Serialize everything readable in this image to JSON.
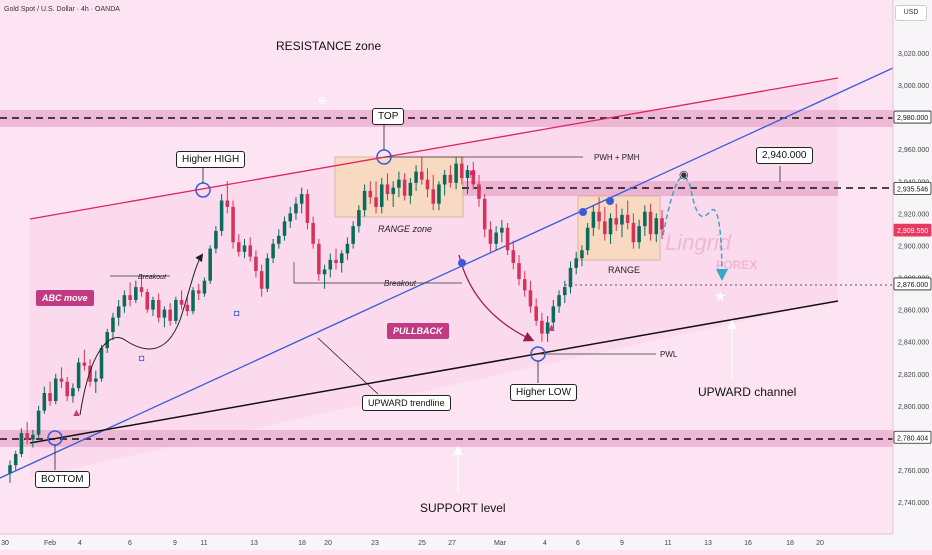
{
  "header": {
    "symbol_title": "Gold Spot / U.S. Dollar · 4h · OANDA",
    "currency_button": "USD"
  },
  "colors": {
    "up": "#0a6b5b",
    "down": "#d7325c",
    "blue": "#3a5bd9",
    "pink": "#c23b82",
    "resistance": "#e0245e"
  },
  "chart_data": {
    "type": "candlestick",
    "symbol": "Gold Spot / U.S. Dollar",
    "timeframe": "4h",
    "source": "OANDA",
    "ylim": [
      2730,
      3035
    ],
    "y_ticks": [
      "3,020.000",
      "3,000.000",
      "2,980.000",
      "2,960.000",
      "2,940.000",
      "2,920.000",
      "2,900.000",
      "2,880.000",
      "2,860.000",
      "2,840.000",
      "2,820.000",
      "2,800.000",
      "2,780.000",
      "2,760.000",
      "2,740.000"
    ],
    "y_tick_values": [
      3020,
      3000,
      2980,
      2960,
      2940,
      2920,
      2900,
      2880,
      2860,
      2840,
      2820,
      2800,
      2780,
      2760,
      2740
    ],
    "x_ticks": [
      "30",
      "Feb",
      "4",
      "6",
      "9",
      "11",
      "13",
      "18",
      "20",
      "23",
      "25",
      "27",
      "Mar",
      "4",
      "6",
      "9",
      "11",
      "13",
      "16",
      "18",
      "20"
    ],
    "price_markers": [
      {
        "label": "2,980.000",
        "value": 2980,
        "style": "white"
      },
      {
        "label": "2,935.546",
        "value": 2935.546,
        "style": "white"
      },
      {
        "label": "2,909.550",
        "value": 2909.55,
        "style": "red"
      },
      {
        "label": "2,876.000",
        "value": 2876,
        "style": "white"
      },
      {
        "label": "2,780.404",
        "value": 2780.404,
        "style": "white"
      }
    ],
    "candles_ohlc": [
      [
        2758,
        2766,
        2752,
        2763
      ],
      [
        2763,
        2772,
        2760,
        2770
      ],
      [
        2770,
        2786,
        2768,
        2783
      ],
      [
        2783,
        2790,
        2776,
        2779
      ],
      [
        2779,
        2785,
        2774,
        2782
      ],
      [
        2782,
        2800,
        2780,
        2797
      ],
      [
        2797,
        2812,
        2795,
        2808
      ],
      [
        2808,
        2815,
        2800,
        2803
      ],
      [
        2803,
        2820,
        2801,
        2817
      ],
      [
        2817,
        2824,
        2811,
        2815
      ],
      [
        2815,
        2818,
        2803,
        2806
      ],
      [
        2806,
        2814,
        2802,
        2811
      ],
      [
        2811,
        2830,
        2809,
        2827
      ],
      [
        2827,
        2835,
        2822,
        2825
      ],
      [
        2825,
        2829,
        2812,
        2815
      ],
      [
        2815,
        2822,
        2808,
        2817
      ],
      [
        2817,
        2838,
        2815,
        2836
      ],
      [
        2836,
        2848,
        2833,
        2846
      ],
      [
        2846,
        2858,
        2841,
        2855
      ],
      [
        2855,
        2866,
        2850,
        2862
      ],
      [
        2862,
        2872,
        2858,
        2869
      ],
      [
        2869,
        2877,
        2862,
        2866
      ],
      [
        2866,
        2878,
        2864,
        2874
      ],
      [
        2874,
        2882,
        2868,
        2871
      ],
      [
        2871,
        2873,
        2858,
        2860
      ],
      [
        2860,
        2868,
        2856,
        2866
      ],
      [
        2866,
        2870,
        2852,
        2855
      ],
      [
        2855,
        2862,
        2849,
        2860
      ],
      [
        2860,
        2864,
        2850,
        2853
      ],
      [
        2853,
        2868,
        2851,
        2866
      ],
      [
        2866,
        2872,
        2860,
        2863
      ],
      [
        2863,
        2868,
        2856,
        2859
      ],
      [
        2859,
        2874,
        2857,
        2872
      ],
      [
        2872,
        2876,
        2866,
        2870
      ],
      [
        2870,
        2880,
        2868,
        2878
      ],
      [
        2878,
        2900,
        2876,
        2898
      ],
      [
        2898,
        2912,
        2895,
        2909
      ],
      [
        2909,
        2932,
        2906,
        2928
      ],
      [
        2928,
        2940,
        2920,
        2924
      ],
      [
        2924,
        2928,
        2898,
        2902
      ],
      [
        2902,
        2907,
        2893,
        2896
      ],
      [
        2896,
        2904,
        2892,
        2900
      ],
      [
        2900,
        2905,
        2890,
        2893
      ],
      [
        2893,
        2897,
        2880,
        2884
      ],
      [
        2884,
        2888,
        2868,
        2873
      ],
      [
        2873,
        2895,
        2871,
        2892
      ],
      [
        2892,
        2904,
        2889,
        2901
      ],
      [
        2901,
        2910,
        2898,
        2906
      ],
      [
        2906,
        2918,
        2903,
        2915
      ],
      [
        2915,
        2924,
        2911,
        2920
      ],
      [
        2920,
        2930,
        2916,
        2926
      ],
      [
        2926,
        2936,
        2920,
        2932
      ],
      [
        2932,
        2935,
        2910,
        2914
      ],
      [
        2914,
        2918,
        2898,
        2901
      ],
      [
        2901,
        2904,
        2878,
        2882
      ],
      [
        2882,
        2888,
        2873,
        2885
      ],
      [
        2885,
        2895,
        2880,
        2891
      ],
      [
        2891,
        2898,
        2885,
        2889
      ],
      [
        2889,
        2897,
        2883,
        2895
      ],
      [
        2895,
        2905,
        2891,
        2901
      ],
      [
        2901,
        2915,
        2898,
        2912
      ],
      [
        2912,
        2925,
        2908,
        2922
      ],
      [
        2922,
        2938,
        2918,
        2934
      ],
      [
        2934,
        2940,
        2926,
        2930
      ],
      [
        2930,
        2940,
        2920,
        2924
      ],
      [
        2924,
        2942,
        2920,
        2938
      ],
      [
        2938,
        2945,
        2928,
        2932
      ],
      [
        2932,
        2940,
        2924,
        2936
      ],
      [
        2936,
        2946,
        2930,
        2941
      ],
      [
        2941,
        2945,
        2928,
        2931
      ],
      [
        2931,
        2942,
        2926,
        2939
      ],
      [
        2939,
        2950,
        2934,
        2946
      ],
      [
        2946,
        2955,
        2938,
        2941
      ],
      [
        2941,
        2948,
        2930,
        2935
      ],
      [
        2935,
        2944,
        2922,
        2926
      ],
      [
        2926,
        2940,
        2922,
        2938
      ],
      [
        2938,
        2947,
        2931,
        2944
      ],
      [
        2944,
        2950,
        2936,
        2939
      ],
      [
        2939,
        2955,
        2935,
        2951
      ],
      [
        2951,
        2955,
        2938,
        2942
      ],
      [
        2942,
        2950,
        2932,
        2947
      ],
      [
        2947,
        2952,
        2935,
        2938
      ],
      [
        2938,
        2944,
        2924,
        2929
      ],
      [
        2929,
        2932,
        2905,
        2910
      ],
      [
        2910,
        2915,
        2896,
        2901
      ],
      [
        2901,
        2912,
        2897,
        2908
      ],
      [
        2908,
        2916,
        2902,
        2911
      ],
      [
        2911,
        2914,
        2894,
        2897
      ],
      [
        2897,
        2903,
        2885,
        2889
      ],
      [
        2889,
        2894,
        2875,
        2879
      ],
      [
        2879,
        2884,
        2868,
        2872
      ],
      [
        2872,
        2878,
        2858,
        2862
      ],
      [
        2862,
        2867,
        2850,
        2853
      ],
      [
        2853,
        2858,
        2840,
        2845
      ],
      [
        2845,
        2856,
        2840,
        2852
      ],
      [
        2852,
        2866,
        2848,
        2862
      ],
      [
        2862,
        2872,
        2858,
        2869
      ],
      [
        2869,
        2878,
        2864,
        2874
      ],
      [
        2874,
        2890,
        2870,
        2886
      ],
      [
        2886,
        2896,
        2882,
        2892
      ],
      [
        2892,
        2900,
        2887,
        2897
      ],
      [
        2897,
        2914,
        2894,
        2911
      ],
      [
        2911,
        2925,
        2906,
        2921
      ],
      [
        2921,
        2930,
        2910,
        2915
      ],
      [
        2915,
        2924,
        2903,
        2907
      ],
      [
        2907,
        2920,
        2901,
        2917
      ],
      [
        2917,
        2926,
        2909,
        2913
      ],
      [
        2913,
        2923,
        2905,
        2919
      ],
      [
        2919,
        2928,
        2910,
        2914
      ],
      [
        2914,
        2920,
        2898,
        2902
      ],
      [
        2902,
        2916,
        2898,
        2912
      ],
      [
        2912,
        2925,
        2906,
        2921
      ],
      [
        2921,
        2926,
        2903,
        2907
      ],
      [
        2907,
        2920,
        2902,
        2917
      ],
      [
        2917,
        2922,
        2904,
        2910
      ]
    ],
    "annotations": {
      "resistance_zone": "RESISTANCE zone",
      "top": "TOP",
      "higher_high": "Higher HIGH",
      "pwh_pmh": "PWH + PMH",
      "range_zone": "RANGE zone",
      "range": "RANGE",
      "breakout_1": "Breakout",
      "breakout_2": "Breakout",
      "abc_move": "ABC move",
      "pullback": "PULLBACK",
      "upward_trendline": "UPWARD trendline",
      "higher_low": "Higher LOW",
      "pwl": "PWL",
      "upward_channel": "UPWARD channel",
      "bottom": "BOTTOM",
      "support_level": "SUPPORT level",
      "target": "2,940.000"
    },
    "watermark": {
      "line1": "Lingrid",
      "line2": "FOREX"
    }
  }
}
